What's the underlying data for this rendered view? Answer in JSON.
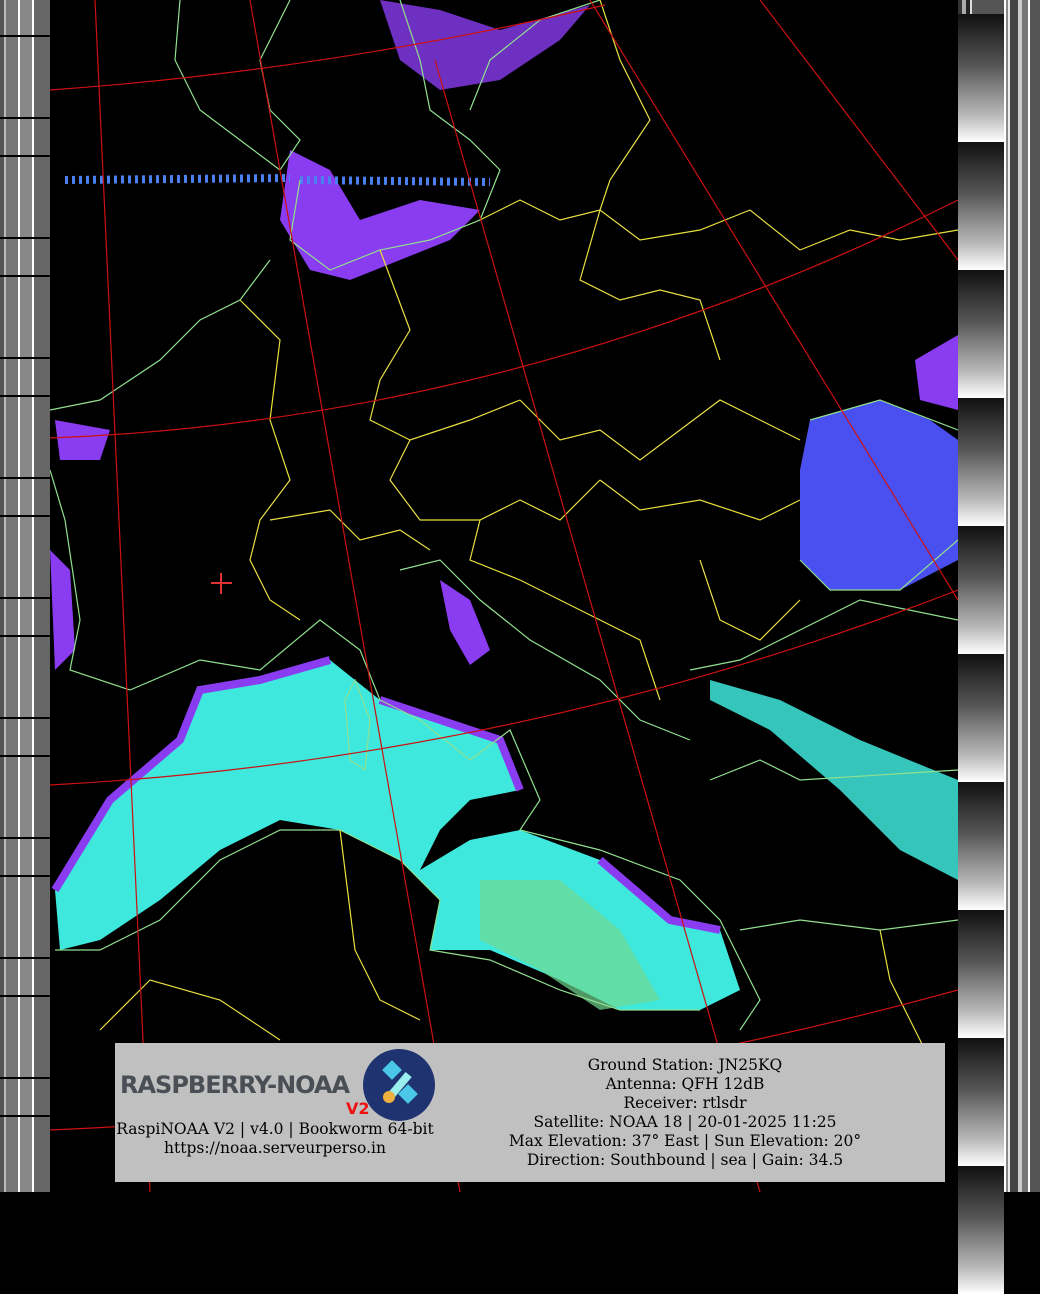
{
  "logo": {
    "text": "RASPBERRY-NOAA",
    "version_badge": "V2"
  },
  "footer_left": {
    "line1": "RaspiNOAA V2 | v4.0 | Bookworm 64-bit",
    "url": "https://noaa.serveurperso.in"
  },
  "footer_right": {
    "ground_station": "Ground Station: JN25KQ",
    "antenna": "Antenna: QFH 12dB",
    "receiver": "Receiver: rtlsdr",
    "satellite": "Satellite: NOAA 18 | 20-01-2025 11:25",
    "elevation": "Max Elevation: 37° East | Sun Elevation: 20°",
    "direction": "Direction: Southbound | sea | Gain: 34.5"
  },
  "colors": {
    "graticule": "#cc1111",
    "coastline": "#90e090",
    "borders": "#e8e040",
    "cloud_cyan": "#40f0e0",
    "cloud_purple": "#8a3cf0",
    "cloud_blue": "#4a50f0",
    "info_background": "#c0c0c0",
    "station_marker": "#dd3333"
  },
  "icons": {
    "station_marker": "plus-marker"
  }
}
